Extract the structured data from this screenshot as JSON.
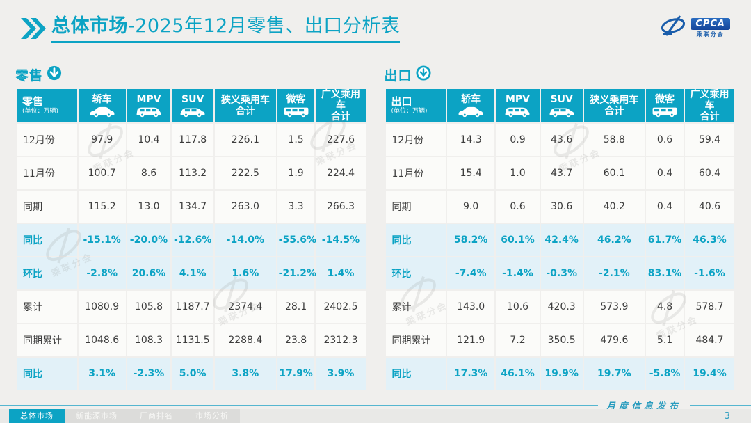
{
  "colors": {
    "accent_teal": "#0ca3c4",
    "percent_row_bg": "#e2f1f8",
    "logo_blue": "#1a5dab",
    "page_bg": "#f0efed"
  },
  "header": {
    "title_bold": "总体市场",
    "title_rest": "-2025年12月零售、出口分析表",
    "chevron_icon": "double-chevron-right-icon"
  },
  "logo": {
    "badge": "CPCA",
    "subtext": "乘联分会",
    "swirl_icon": "cpca-swirl-logo-icon"
  },
  "watermark_text": "乘联分会",
  "columns": [
    {
      "label": "轿车",
      "icon": "sedan-car-icon"
    },
    {
      "label": "MPV",
      "icon": "mpv-car-icon"
    },
    {
      "label": "SUV",
      "icon": "suv-car-icon"
    },
    {
      "label": "狭义乘用车",
      "label2": "合计"
    },
    {
      "label": "微客",
      "icon": "minibus-icon"
    },
    {
      "label": "广义乘用车",
      "label2": "合计"
    }
  ],
  "tables": {
    "retail": {
      "section_label": "零售",
      "arrow_icon": "circle-down-arrow-filled-icon",
      "corner_title": "零售",
      "corner_unit": "(单位：万辆)",
      "rows": [
        {
          "label": "12月份",
          "type": "normal",
          "values": [
            "97.9",
            "10.4",
            "117.8",
            "226.1",
            "1.5",
            "227.6"
          ]
        },
        {
          "label": "11月份",
          "type": "normal",
          "values": [
            "100.7",
            "8.6",
            "113.2",
            "222.5",
            "1.9",
            "224.4"
          ]
        },
        {
          "label": "同期",
          "type": "normal",
          "values": [
            "115.2",
            "13.0",
            "134.7",
            "263.0",
            "3.3",
            "266.3"
          ]
        },
        {
          "label": "同比",
          "type": "percent",
          "values": [
            "-15.1%",
            "-20.0%",
            "-12.6%",
            "-14.0%",
            "-55.6%",
            "-14.5%"
          ]
        },
        {
          "label": "环比",
          "type": "percent",
          "values": [
            "-2.8%",
            "20.6%",
            "4.1%",
            "1.6%",
            "-21.2%",
            "1.4%"
          ]
        },
        {
          "label": "累计",
          "type": "normal",
          "values": [
            "1080.9",
            "105.8",
            "1187.7",
            "2374.4",
            "28.1",
            "2402.5"
          ]
        },
        {
          "label": "同期累计",
          "type": "normal",
          "values": [
            "1048.6",
            "108.3",
            "1131.5",
            "2288.4",
            "23.8",
            "2312.3"
          ]
        },
        {
          "label": "同比",
          "type": "percent",
          "values": [
            "3.1%",
            "-2.3%",
            "5.0%",
            "3.8%",
            "17.9%",
            "3.9%"
          ]
        }
      ]
    },
    "export": {
      "section_label": "出口",
      "arrow_icon": "circle-down-arrow-outline-icon",
      "corner_title": "出口",
      "corner_unit": "(单位：万辆)",
      "rows": [
        {
          "label": "12月份",
          "type": "normal",
          "values": [
            "14.3",
            "0.9",
            "43.6",
            "58.8",
            "0.6",
            "59.4"
          ]
        },
        {
          "label": "11月份",
          "type": "normal",
          "values": [
            "15.4",
            "1.0",
            "43.7",
            "60.1",
            "0.4",
            "60.4"
          ]
        },
        {
          "label": "同期",
          "type": "normal",
          "values": [
            "9.0",
            "0.6",
            "30.6",
            "40.2",
            "0.4",
            "40.6"
          ]
        },
        {
          "label": "同比",
          "type": "percent",
          "values": [
            "58.2%",
            "60.1%",
            "42.4%",
            "46.2%",
            "61.7%",
            "46.3%"
          ]
        },
        {
          "label": "环比",
          "type": "percent",
          "values": [
            "-7.4%",
            "-1.4%",
            "-0.3%",
            "-2.1%",
            "83.1%",
            "-1.6%"
          ]
        },
        {
          "label": "累计",
          "type": "normal",
          "values": [
            "143.0",
            "10.6",
            "420.3",
            "573.9",
            "4.8",
            "578.7"
          ]
        },
        {
          "label": "同期累计",
          "type": "normal",
          "values": [
            "121.9",
            "7.2",
            "350.5",
            "479.6",
            "5.1",
            "484.7"
          ]
        },
        {
          "label": "同比",
          "type": "percent",
          "values": [
            "17.3%",
            "46.1%",
            "19.9%",
            "19.7%",
            "-5.8%",
            "19.4%"
          ]
        }
      ]
    }
  },
  "footer": {
    "release_label": "月度信息发布",
    "page_number": "3",
    "tabs": [
      {
        "label": "总体市场",
        "active": true
      },
      {
        "label": "新能源市场",
        "active": false
      },
      {
        "label": "厂商排名",
        "active": false
      },
      {
        "label": "市场分析",
        "active": false
      }
    ]
  }
}
